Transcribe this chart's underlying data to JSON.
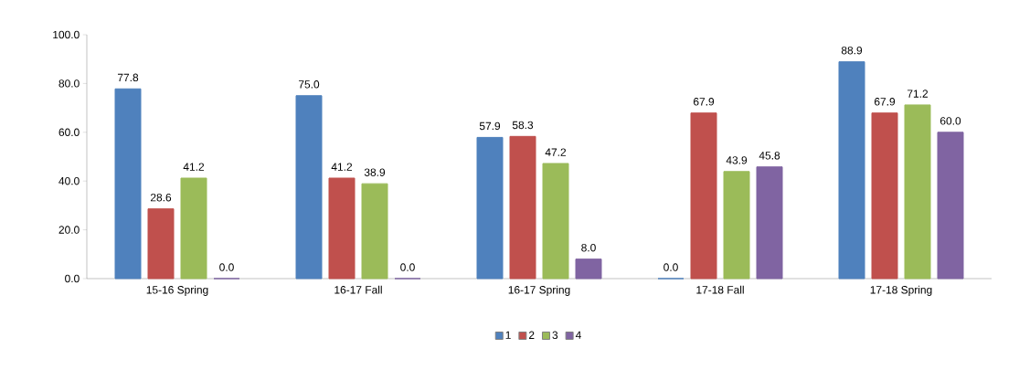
{
  "chart_data": {
    "type": "bar",
    "categories": [
      "15-16 Spring",
      "16-17 Fall",
      "16-17 Spring",
      "17-18 Fall",
      "17-18 Spring"
    ],
    "series": [
      {
        "name": "1",
        "color": "#4f81bd",
        "values": [
          77.8,
          75.0,
          57.9,
          0.0,
          88.9
        ],
        "value_labels": [
          "77.8",
          "75.0",
          "57.9",
          "0.0",
          "88.9"
        ]
      },
      {
        "name": "2",
        "color": "#c0504d",
        "values": [
          28.6,
          41.2,
          58.3,
          67.9,
          67.9
        ],
        "value_labels": [
          "28.6",
          "41.2",
          "58.3",
          "67.9",
          "67.9"
        ]
      },
      {
        "name": "3",
        "color": "#9bbb59",
        "values": [
          41.2,
          38.9,
          47.2,
          43.9,
          71.2
        ],
        "value_labels": [
          "41.2",
          "38.9",
          "47.2",
          "43.9",
          "71.2"
        ]
      },
      {
        "name": "4",
        "color": "#8064a2",
        "values": [
          0.0,
          0.0,
          8.0,
          45.8,
          60.0
        ],
        "value_labels": [
          "0.0",
          "0.0",
          "8.0",
          "45.8",
          "60.0"
        ]
      }
    ],
    "ylim": [
      0,
      100
    ],
    "yticks": [
      {
        "value": 0,
        "label": "0.0"
      },
      {
        "value": 20,
        "label": "20.0"
      },
      {
        "value": 40,
        "label": "40.0"
      },
      {
        "value": 60,
        "label": "60.0"
      },
      {
        "value": 80,
        "label": "80.0"
      },
      {
        "value": 100,
        "label": "100.0"
      }
    ],
    "legend": "bottom"
  }
}
